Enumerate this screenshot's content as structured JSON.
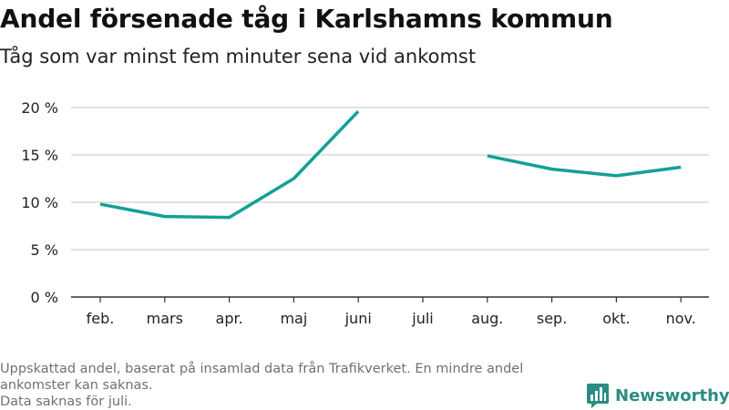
{
  "title": "Andel försenade tåg i Karlshamns kommun",
  "subtitle": "Tåg som var minst fem minuter sena vid ankomst",
  "footnote": {
    "lines": [
      "Uppskattad andel, baserat på insamlad data från Trafikverket. En mindre andel",
      "ankomster kan saknas.",
      "Data saknas för juli."
    ]
  },
  "logo": {
    "text": "Newsworthy",
    "icon": "bar-chart-speech-bubble-icon"
  },
  "colors": {
    "line": "#13a096",
    "grid": "#d9d9d9",
    "axis": "#333333",
    "brand": "#2a8c84"
  },
  "chart_data": {
    "type": "line",
    "categories": [
      "feb.",
      "mars",
      "apr.",
      "maj",
      "juni",
      "juli",
      "aug.",
      "sep.",
      "okt.",
      "nov."
    ],
    "series": [
      {
        "values": [
          9.8,
          8.5,
          8.4,
          12.5,
          19.6,
          null,
          14.9,
          13.5,
          12.8,
          13.7
        ]
      }
    ],
    "ylim": [
      0,
      20
    ],
    "yticks": [
      0,
      5,
      10,
      15,
      20
    ],
    "ytick_labels": [
      "0 %",
      "5 %",
      "10 %",
      "15 %",
      "20 %"
    ],
    "xlabel": "",
    "ylabel": "",
    "grid": true
  }
}
